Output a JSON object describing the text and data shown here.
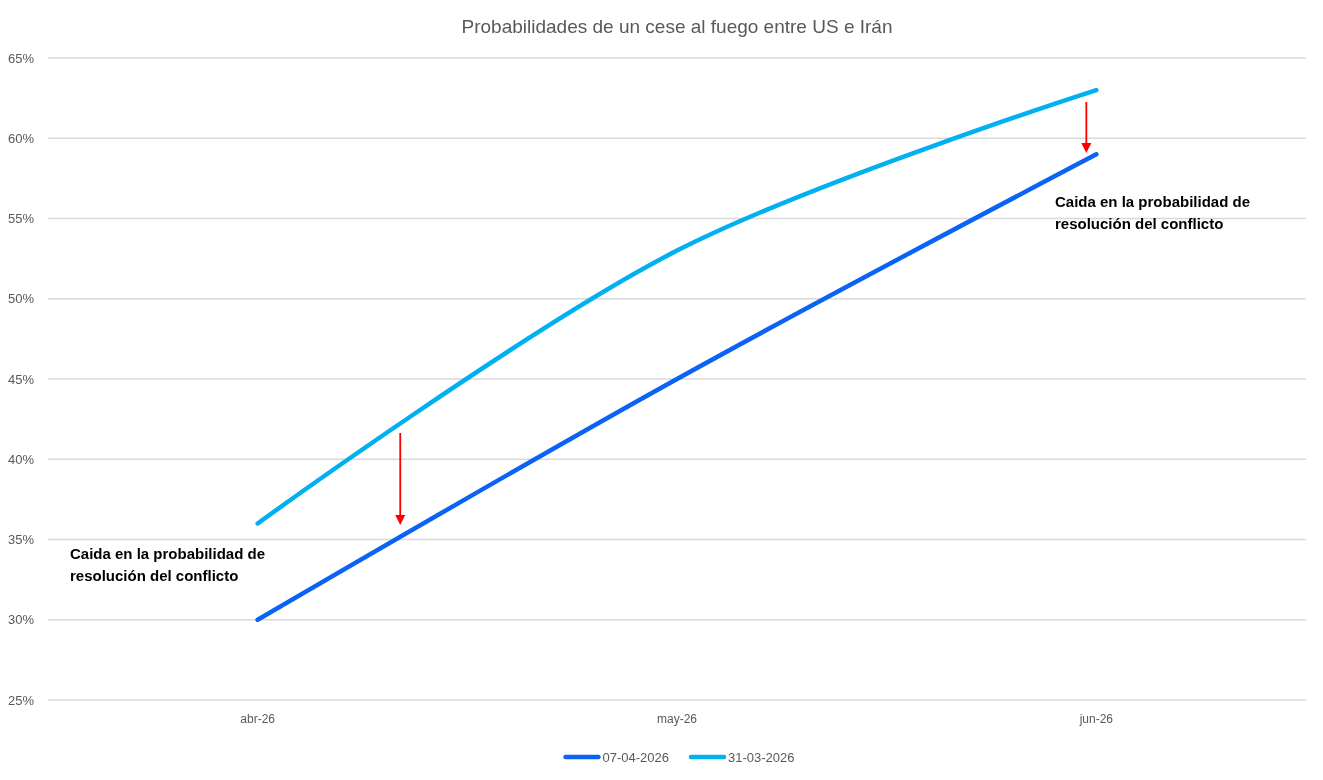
{
  "chart_data": {
    "type": "line",
    "title": "Probabilidades de un cese al fuego entre US e Irán",
    "categories": [
      "abr-26",
      "may-26",
      "jun-26"
    ],
    "series": [
      {
        "name": "07-04-2026",
        "color": "#0b63f6",
        "values": [
          30,
          45,
          59
        ]
      },
      {
        "name": "31-03-2026",
        "color": "#00b0f0",
        "values": [
          36,
          53,
          63
        ]
      }
    ],
    "ylim": [
      25,
      65
    ],
    "yticks": [
      {
        "value": 25,
        "label": "25%"
      },
      {
        "value": 30,
        "label": "30%"
      },
      {
        "value": 35,
        "label": "35%"
      },
      {
        "value": 40,
        "label": "40%"
      },
      {
        "value": 45,
        "label": "45%"
      },
      {
        "value": 50,
        "label": "50%"
      },
      {
        "value": 55,
        "label": "55%"
      },
      {
        "value": 60,
        "label": "60%"
      },
      {
        "value": 65,
        "label": "65%"
      }
    ],
    "grid": "y",
    "legend": "bottom",
    "annotations": [
      "Caida en la probabilidad de resolución del conflicto",
      "Caida en la probabilidad de resolución del conflicto"
    ]
  }
}
